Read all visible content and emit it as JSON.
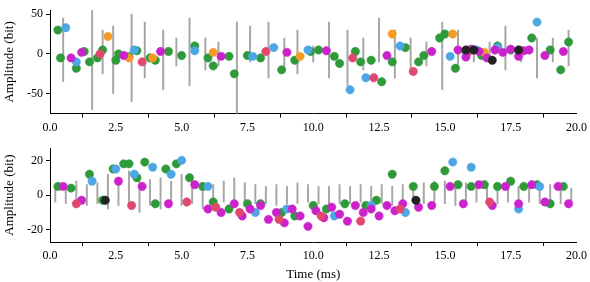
{
  "chart_data": [
    {
      "type": "scatter",
      "ylabel": "Amplitude (bit)",
      "grid": false,
      "xlim": [
        0,
        20
      ],
      "xticks": [
        {
          "value": 0,
          "label": "0.0"
        },
        2.5,
        {
          "value": 5,
          "label": "5.0"
        },
        7.5,
        {
          "value": 10,
          "label": "10.0"
        },
        12.5,
        {
          "value": 15,
          "label": "15.0"
        },
        17.5,
        {
          "value": 20,
          "label": "20.0"
        }
      ],
      "ylim": [
        -75,
        55
      ],
      "yticks": [
        -50,
        0,
        50
      ],
      "series": [
        {
          "type": "bar",
          "color": "#a6a6a6",
          "x": [
            0.5,
            1.6,
            2.0,
            2.4,
            3.1,
            3.6,
            4.3,
            4.8,
            5.3,
            5.9,
            6.4,
            7.1,
            7.6,
            8.3,
            8.9,
            9.4,
            10.0,
            10.6,
            11.3,
            11.9,
            12.5,
            13.1,
            13.7,
            14.3,
            14.9,
            15.5,
            16.1,
            16.7,
            17.3,
            17.9,
            18.5,
            19.1,
            19.7
          ],
          "low": [
            -35,
            -70,
            -25,
            -50,
            -60,
            -30,
            -45,
            -15,
            -40,
            -20,
            -15,
            -75,
            -10,
            -30,
            -20,
            -25,
            -10,
            -30,
            -40,
            -20,
            -10,
            -30,
            -25,
            -15,
            -45,
            -20,
            -10,
            -10,
            -20,
            -10,
            -30,
            -10,
            -15
          ],
          "high": [
            45,
            55,
            30,
            35,
            50,
            40,
            30,
            20,
            45,
            20,
            15,
            40,
            35,
            40,
            20,
            30,
            10,
            40,
            30,
            20,
            45,
            30,
            20,
            15,
            40,
            30,
            10,
            15,
            35,
            10,
            20,
            20,
            30
          ]
        },
        {
          "type": "scatter",
          "color": "#222222",
          "marker": "circle",
          "x": [
            15.8,
            16.1,
            16.8,
            17.8
          ],
          "values": [
            5,
            5,
            -8,
            5
          ]
        },
        {
          "type": "scatter",
          "color": "#cc22cc",
          "marker": "circle",
          "x": [
            0.8,
            1.2,
            2.8,
            4.2,
            6.5,
            9.0,
            10.5,
            12.8,
            14.5,
            15.5,
            15.8,
            16.0,
            16.3,
            16.6,
            16.9,
            17.2,
            17.5,
            17.8,
            18.0,
            18.2,
            18.8,
            19.5
          ],
          "values": [
            -5,
            2,
            -2,
            3,
            -3,
            2,
            4,
            -2,
            3,
            5,
            -4,
            6,
            3,
            -5,
            5,
            2,
            6,
            -3,
            4,
            5,
            -2,
            3
          ]
        },
        {
          "type": "scatter",
          "color": "#e04870",
          "marker": "circle",
          "x": [
            1.9,
            3.5,
            8.2,
            11.5,
            12.3,
            13.8,
            15.9
          ],
          "values": [
            0,
            -10,
            3,
            -5,
            -30,
            -22,
            3
          ]
        },
        {
          "type": "scatter",
          "color": "#f59a23",
          "marker": "circle",
          "x": [
            2.2,
            3.0,
            3.9,
            6.2,
            9.5,
            13.0,
            15.3,
            16.5
          ],
          "values": [
            22,
            -5,
            -5,
            2,
            -3,
            25,
            25,
            2
          ]
        },
        {
          "type": "scatter",
          "color": "#4da6e6",
          "marker": "circle",
          "x": [
            0.6,
            1.0,
            3.2,
            5.5,
            7.7,
            8.5,
            9.8,
            11.4,
            12.0,
            13.3,
            15.2,
            16.2,
            17.0,
            18.5
          ],
          "values": [
            33,
            -10,
            5,
            4,
            -3,
            8,
            5,
            -45,
            -30,
            10,
            -3,
            5,
            8,
            40
          ]
        },
        {
          "type": "scatter",
          "color": "#2e9a3a",
          "marker": "circle",
          "x": [
            0.3,
            0.4,
            1.0,
            1.3,
            1.5,
            1.8,
            2.0,
            2.5,
            2.6,
            3.0,
            3.3,
            3.8,
            4.0,
            4.5,
            5.0,
            5.5,
            6.0,
            6.2,
            6.8,
            7.0,
            7.5,
            8.0,
            8.8,
            9.3,
            9.9,
            10.2,
            10.8,
            11.0,
            11.6,
            11.8,
            12.2,
            12.6,
            13.0,
            13.5,
            14.0,
            14.2,
            14.8,
            15.0,
            15.4,
            15.8,
            16.4,
            17.0,
            17.5,
            18.3,
            19.0,
            19.4,
            19.7
          ],
          "values": [
            30,
            -5,
            -18,
            3,
            -10,
            -5,
            5,
            -8,
            0,
            -3,
            4,
            -5,
            -8,
            3,
            -2,
            10,
            -5,
            -15,
            -3,
            -25,
            -2,
            -5,
            -20,
            -8,
            3,
            5,
            -3,
            -12,
            3,
            -10,
            -8,
            -35,
            -10,
            8,
            -10,
            -2,
            20,
            25,
            -18,
            3,
            -2,
            10,
            5,
            20,
            5,
            -20,
            15
          ]
        }
      ]
    },
    {
      "type": "scatter",
      "xlabel": "Time (ms)",
      "ylabel": "Amplitude (bit)",
      "grid": false,
      "xlim": [
        0,
        20
      ],
      "xticks": [
        {
          "value": 0,
          "label": "0.0"
        },
        2.5,
        {
          "value": 5,
          "label": "5.0"
        },
        7.5,
        {
          "value": 10,
          "label": "10.0"
        },
        12.5,
        {
          "value": 15,
          "label": "15.0"
        },
        17.5,
        {
          "value": 20,
          "label": "20.0"
        }
      ],
      "ylim": [
        -27,
        27
      ],
      "yticks": [
        -20,
        0,
        20
      ],
      "series": [
        {
          "type": "bar",
          "color": "#a6a6a6",
          "x": [
            0.2,
            0.6,
            1.0,
            1.4,
            1.8,
            2.2,
            2.6,
            3.0,
            3.4,
            3.8,
            4.2,
            4.6,
            5.0,
            5.4,
            5.8,
            6.2,
            6.6,
            7.0,
            7.4,
            7.8,
            8.2,
            8.6,
            9.0,
            9.4,
            9.8,
            10.2,
            10.6,
            11.0,
            11.4,
            11.8,
            12.2,
            12.6,
            13.0,
            13.4,
            13.8,
            14.2,
            14.6,
            15.0,
            15.4,
            15.8,
            16.2,
            16.6,
            17.0,
            17.4,
            17.8,
            18.2,
            18.6,
            19.0,
            19.4,
            19.8
          ],
          "low": [
            -4,
            -5,
            -4,
            -6,
            -5,
            -8,
            -6,
            -7,
            -10,
            -6,
            -8,
            -5,
            -6,
            -5,
            -8,
            -5,
            -4,
            -5,
            -6,
            -5,
            -5,
            -6,
            -5,
            -5,
            -4,
            -5,
            -6,
            -5,
            -5,
            -4,
            -5,
            -5,
            -6,
            -5,
            -4,
            -5,
            -4,
            -5,
            -6,
            -5,
            -4,
            -5,
            -5,
            -4,
            -5,
            -4,
            -5,
            -4,
            -5,
            -4
          ],
          "high": [
            5,
            6,
            8,
            6,
            7,
            12,
            10,
            14,
            12,
            9,
            10,
            8,
            12,
            9,
            7,
            6,
            8,
            10,
            7,
            6,
            5,
            6,
            5,
            7,
            6,
            5,
            5,
            6,
            5,
            6,
            5,
            6,
            5,
            6,
            5,
            7,
            8,
            8,
            6,
            7,
            8,
            6,
            7,
            6,
            5,
            6,
            5,
            6,
            5,
            4
          ]
        },
        {
          "type": "scatter",
          "color": "#222222",
          "marker": "circle",
          "x": [
            2.1,
            13.9
          ],
          "values": [
            -3,
            -3
          ]
        },
        {
          "type": "scatter",
          "color": "#e04870",
          "marker": "circle",
          "x": [
            1.0,
            3.1,
            5.2,
            6.3,
            7.2,
            8.7,
            10.3,
            11.8,
            13.3,
            16.7
          ],
          "values": [
            -5,
            -6,
            -4,
            -7,
            -10,
            -14,
            -12,
            -15,
            -8,
            -4
          ]
        },
        {
          "type": "scatter",
          "color": "#cc22cc",
          "marker": "circle",
          "x": [
            0.5,
            1.2,
            2.6,
            3.5,
            4.5,
            5.5,
            6.0,
            6.5,
            7.0,
            7.3,
            7.6,
            8.0,
            8.3,
            8.6,
            8.9,
            9.2,
            9.5,
            9.8,
            10.1,
            10.4,
            10.7,
            11.0,
            11.3,
            11.6,
            11.9,
            12.2,
            12.5,
            12.8,
            13.1,
            13.4,
            14.0,
            14.5,
            15.2,
            15.7,
            16.3,
            16.8,
            17.3,
            17.8,
            18.3,
            18.8,
            19.3,
            19.7
          ],
          "values": [
            5,
            -3,
            8,
            5,
            -5,
            6,
            -8,
            -10,
            -5,
            -12,
            -8,
            -6,
            -14,
            -10,
            -16,
            -8,
            -12,
            -18,
            -9,
            -13,
            -7,
            -11,
            -15,
            -6,
            -10,
            -8,
            -12,
            -6,
            -9,
            -5,
            -7,
            -6,
            5,
            -5,
            6,
            -6,
            5,
            -5,
            6,
            -4,
            5,
            -5
          ]
        },
        {
          "type": "scatter",
          "color": "#4da6e6",
          "marker": "circle",
          "x": [
            1.6,
            2.5,
            3.2,
            3.9,
            4.6,
            5.0,
            6.0,
            7.8,
            9.0,
            10.8,
            12.2,
            13.5,
            15.3,
            16.0,
            17.8,
            18.6
          ],
          "values": [
            8,
            15,
            12,
            16,
            12,
            20,
            5,
            -10,
            -8,
            -12,
            -6,
            -10,
            19,
            16,
            -8,
            5
          ]
        },
        {
          "type": "scatter",
          "color": "#2e9a3a",
          "marker": "circle",
          "x": [
            0.3,
            0.8,
            1.5,
            2.0,
            2.4,
            2.8,
            3.0,
            3.3,
            3.6,
            4.0,
            4.4,
            4.8,
            5.3,
            5.8,
            6.2,
            6.8,
            7.5,
            8.0,
            8.8,
            9.3,
            10.0,
            10.5,
            11.2,
            12.0,
            12.4,
            13.0,
            13.8,
            14.6,
            15.0,
            15.5,
            16.0,
            16.5,
            17.0,
            17.5,
            18.0,
            18.5,
            19.0,
            19.5
          ],
          "values": [
            5,
            4,
            12,
            -3,
            15,
            18,
            18,
            10,
            19,
            -5,
            15,
            18,
            10,
            5,
            -4,
            -8,
            -5,
            -5,
            -10,
            -12,
            -6,
            -8,
            -5,
            -6,
            -3,
            12,
            5,
            5,
            14,
            6,
            5,
            6,
            5,
            8,
            5,
            6,
            -5,
            5
          ]
        }
      ]
    }
  ]
}
